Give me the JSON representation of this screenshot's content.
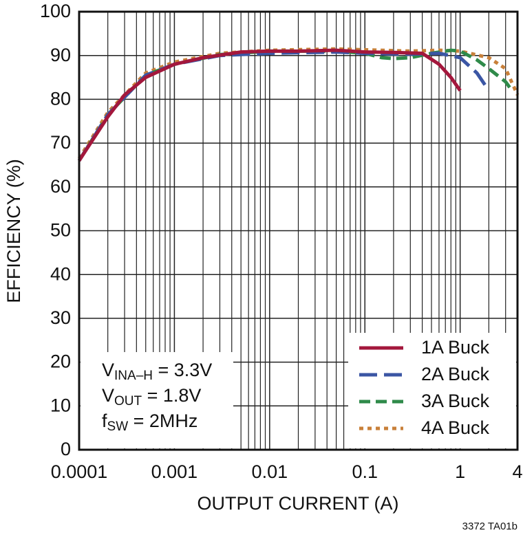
{
  "chart_data": {
    "type": "line",
    "ylabel": "EFFICIENCY (%)",
    "xlabel": "OUTPUT CURRENT (A)",
    "xscale": "log",
    "xlim": [
      0.0001,
      4
    ],
    "xticks": [
      0.0001,
      0.001,
      0.01,
      0.1,
      1,
      4
    ],
    "xgrid_minor": [
      0.0002,
      0.0003,
      0.0004,
      0.0005,
      0.0006,
      0.0007,
      0.0008,
      0.0009,
      0.002,
      0.003,
      0.004,
      0.005,
      0.006,
      0.007,
      0.008,
      0.009,
      0.02,
      0.03,
      0.04,
      0.05,
      0.06,
      0.07,
      0.08,
      0.09,
      0.2,
      0.3,
      0.4,
      0.5,
      0.6,
      0.7,
      0.8,
      0.9,
      2,
      3
    ],
    "ylim": [
      0,
      100
    ],
    "yticks": [
      0,
      10,
      20,
      30,
      40,
      50,
      60,
      70,
      80,
      90,
      100
    ],
    "grid": true,
    "legend": "lower right",
    "annotation": [
      {
        "main": "V",
        "sub": "INA–H",
        "rest": " = 3.3V"
      },
      {
        "main": "V",
        "sub": "OUT",
        "rest": " = 1.8V"
      },
      {
        "main": "f",
        "sub": "SW",
        "rest": " = 2MHz"
      }
    ],
    "footnote": "3372 TA01b",
    "series": [
      {
        "name": "4A Buck",
        "color": "#c8803a",
        "linestyle": "dotted",
        "x": [
          0.0001,
          0.0002,
          0.0005,
          0.001,
          0.003,
          0.01,
          0.05,
          0.1,
          0.3,
          0.6,
          1,
          2,
          3,
          4
        ],
        "values": [
          66.5,
          77,
          86,
          88.5,
          90.5,
          91.2,
          91.5,
          91.3,
          91,
          91.2,
          91,
          89.5,
          87,
          81
        ]
      },
      {
        "name": "3A Buck",
        "color": "#2f8a4a",
        "linestyle": "dashed",
        "x": [
          0.0001,
          0.0002,
          0.0005,
          0.001,
          0.003,
          0.01,
          0.05,
          0.1,
          0.15,
          0.2,
          0.3,
          0.5,
          0.8,
          1,
          1.5,
          2,
          3,
          3.5
        ],
        "values": [
          66,
          76.5,
          85.5,
          88,
          90.2,
          91,
          91,
          90.5,
          89.5,
          89.3,
          89.5,
          90.5,
          91.2,
          91,
          89,
          87,
          84,
          82
        ]
      },
      {
        "name": "2A Buck",
        "color": "#3b56a4",
        "linestyle": "longdash",
        "x": [
          0.0001,
          0.0002,
          0.0005,
          0.001,
          0.003,
          0.01,
          0.05,
          0.1,
          0.3,
          0.6,
          1,
          1.5,
          2
        ],
        "values": [
          66,
          76.5,
          85.5,
          88,
          90,
          90.5,
          90.8,
          90.5,
          90.3,
          90.5,
          89.5,
          86,
          82
        ]
      },
      {
        "name": "1A Buck",
        "color": "#a3173c",
        "linestyle": "solid",
        "x": [
          0.0001,
          0.0002,
          0.0003,
          0.0005,
          0.001,
          0.002,
          0.005,
          0.01,
          0.02,
          0.05,
          0.1,
          0.2,
          0.4,
          0.6,
          0.8,
          1
        ],
        "values": [
          66,
          76,
          81,
          85,
          88,
          89.5,
          90.8,
          91,
          91,
          91.2,
          90.8,
          90.7,
          90.5,
          88,
          85,
          82
        ]
      }
    ]
  }
}
